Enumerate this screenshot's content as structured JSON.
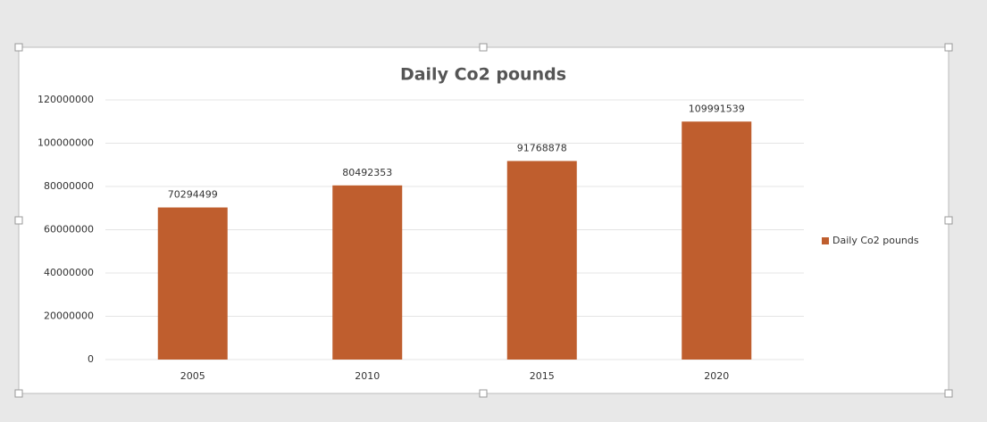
{
  "chart_data": {
    "type": "bar",
    "title": "Daily Co2 pounds",
    "categories": [
      "2005",
      "2010",
      "2015",
      "2020"
    ],
    "series": [
      {
        "name": "Daily Co2 pounds",
        "color": "#bf5e2e",
        "values": [
          70294499,
          80492353,
          91768878,
          109991539
        ]
      }
    ],
    "ylim": [
      0,
      120000000
    ],
    "yticks": [
      0,
      20000000,
      40000000,
      60000000,
      80000000,
      100000000,
      120000000
    ],
    "grid": true,
    "legend": "right"
  }
}
